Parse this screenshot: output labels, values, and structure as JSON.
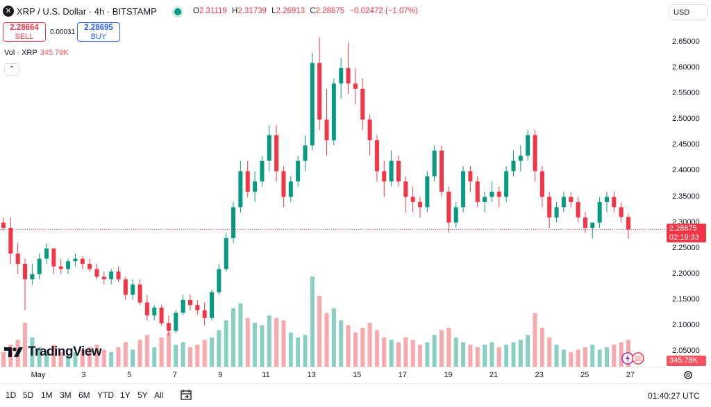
{
  "header": {
    "symbol_icon": "x-logo-icon",
    "title": "XRP / U.S. Dollar · 4h · BITSTAMP",
    "ohlc": {
      "o_label": "O",
      "o": "2.31119",
      "h_label": "H",
      "h": "2.31739",
      "l_label": "L",
      "l": "2.26913",
      "c_label": "C",
      "c": "2.28675",
      "change": "−0.02472 (−1.07%)"
    },
    "currency": "USD"
  },
  "trade": {
    "sell_price": "2.28664",
    "sell_label": "SELL",
    "spread": "0.00031",
    "buy_price": "2.28695",
    "buy_label": "BUY"
  },
  "volume_legend": {
    "label": "Vol · XRP",
    "value": "345.78K"
  },
  "price_axis": {
    "labels": [
      "2.65000",
      "2.60000",
      "2.55000",
      "2.50000",
      "2.45000",
      "2.40000",
      "2.35000",
      "2.30000",
      "2.25000",
      "2.20000",
      "2.15000",
      "2.10000",
      "2.05000"
    ],
    "last_price": "2.28675",
    "countdown": "02:19:33",
    "volume_tag": "345.78K"
  },
  "time_axis": {
    "labels": [
      "May",
      "3",
      "5",
      "7",
      "9",
      "11",
      "13",
      "15",
      "17",
      "19",
      "21",
      "23",
      "25",
      "27"
    ]
  },
  "bottom_bar": {
    "ranges": [
      "1D",
      "5D",
      "1M",
      "3M",
      "6M",
      "YTD",
      "1Y",
      "5Y",
      "All"
    ],
    "clock": "01:40:27 UTC"
  },
  "branding": {
    "logo_text": "TradingView"
  },
  "colors": {
    "up": "#089981",
    "down": "#f23645",
    "vol_up": "#89cfc3",
    "vol_down": "#f7a9ae"
  },
  "chart_data": {
    "type": "candlestick",
    "x_unit": "4h candles, Apr 30 – May 27",
    "ylim": [
      2.02,
      2.68
    ],
    "candles": [
      [
        2.3,
        2.31,
        2.285,
        2.29
      ],
      [
        2.29,
        2.31,
        2.22,
        2.24
      ],
      [
        2.24,
        2.26,
        2.2,
        2.22
      ],
      [
        2.22,
        2.23,
        2.13,
        2.19
      ],
      [
        2.19,
        2.22,
        2.18,
        2.2
      ],
      [
        2.2,
        2.24,
        2.19,
        2.23
      ],
      [
        2.23,
        2.26,
        2.22,
        2.25
      ],
      [
        2.25,
        2.25,
        2.2,
        2.215
      ],
      [
        2.215,
        2.23,
        2.2,
        2.21
      ],
      [
        2.21,
        2.23,
        2.2,
        2.225
      ],
      [
        2.225,
        2.24,
        2.215,
        2.23
      ],
      [
        2.23,
        2.235,
        2.21,
        2.22
      ],
      [
        2.22,
        2.23,
        2.205,
        2.21
      ],
      [
        2.21,
        2.22,
        2.19,
        2.195
      ],
      [
        2.195,
        2.205,
        2.18,
        2.19
      ],
      [
        2.19,
        2.21,
        2.18,
        2.205
      ],
      [
        2.205,
        2.215,
        2.185,
        2.19
      ],
      [
        2.19,
        2.195,
        2.15,
        2.16
      ],
      [
        2.16,
        2.19,
        2.15,
        2.18
      ],
      [
        2.18,
        2.19,
        2.14,
        2.145
      ],
      [
        2.145,
        2.16,
        2.11,
        2.12
      ],
      [
        2.12,
        2.14,
        2.11,
        2.135
      ],
      [
        2.135,
        2.14,
        2.1,
        2.105
      ],
      [
        2.105,
        2.12,
        2.08,
        2.09
      ],
      [
        2.09,
        2.13,
        2.085,
        2.125
      ],
      [
        2.125,
        2.16,
        2.12,
        2.15
      ],
      [
        2.15,
        2.16,
        2.13,
        2.14
      ],
      [
        2.14,
        2.15,
        2.12,
        2.13
      ],
      [
        2.13,
        2.145,
        2.1,
        2.115
      ],
      [
        2.115,
        2.17,
        2.11,
        2.165
      ],
      [
        2.165,
        2.22,
        2.16,
        2.21
      ],
      [
        2.21,
        2.28,
        2.205,
        2.27
      ],
      [
        2.27,
        2.34,
        2.26,
        2.33
      ],
      [
        2.33,
        2.42,
        2.32,
        2.4
      ],
      [
        2.4,
        2.42,
        2.35,
        2.36
      ],
      [
        2.36,
        2.4,
        2.34,
        2.38
      ],
      [
        2.38,
        2.43,
        2.37,
        2.42
      ],
      [
        2.42,
        2.49,
        2.4,
        2.47
      ],
      [
        2.47,
        2.49,
        2.38,
        2.4
      ],
      [
        2.4,
        2.41,
        2.33,
        2.35
      ],
      [
        2.35,
        2.39,
        2.34,
        2.38
      ],
      [
        2.38,
        2.43,
        2.37,
        2.42
      ],
      [
        2.42,
        2.47,
        2.4,
        2.45
      ],
      [
        2.45,
        2.63,
        2.44,
        2.61
      ],
      [
        2.61,
        2.66,
        2.48,
        2.5
      ],
      [
        2.5,
        2.56,
        2.43,
        2.46
      ],
      [
        2.46,
        2.58,
        2.45,
        2.57
      ],
      [
        2.57,
        2.62,
        2.54,
        2.6
      ],
      [
        2.6,
        2.65,
        2.55,
        2.57
      ],
      [
        2.57,
        2.6,
        2.53,
        2.56
      ],
      [
        2.56,
        2.58,
        2.48,
        2.5
      ],
      [
        2.5,
        2.51,
        2.43,
        2.46
      ],
      [
        2.46,
        2.47,
        2.38,
        2.4
      ],
      [
        2.4,
        2.42,
        2.35,
        2.38
      ],
      [
        2.38,
        2.44,
        2.37,
        2.42
      ],
      [
        2.42,
        2.43,
        2.37,
        2.38
      ],
      [
        2.38,
        2.39,
        2.32,
        2.35
      ],
      [
        2.35,
        2.37,
        2.32,
        2.34
      ],
      [
        2.34,
        2.35,
        2.31,
        2.33
      ],
      [
        2.33,
        2.4,
        2.32,
        2.39
      ],
      [
        2.39,
        2.45,
        2.38,
        2.44
      ],
      [
        2.44,
        2.45,
        2.35,
        2.36
      ],
      [
        2.36,
        2.37,
        2.28,
        2.3
      ],
      [
        2.3,
        2.34,
        2.29,
        2.33
      ],
      [
        2.33,
        2.41,
        2.32,
        2.4
      ],
      [
        2.4,
        2.41,
        2.36,
        2.38
      ],
      [
        2.38,
        2.39,
        2.33,
        2.34
      ],
      [
        2.34,
        2.36,
        2.32,
        2.35
      ],
      [
        2.35,
        2.38,
        2.34,
        2.36
      ],
      [
        2.36,
        2.37,
        2.33,
        2.35
      ],
      [
        2.35,
        2.41,
        2.34,
        2.4
      ],
      [
        2.4,
        2.44,
        2.39,
        2.42
      ],
      [
        2.42,
        2.45,
        2.4,
        2.43
      ],
      [
        2.43,
        2.48,
        2.42,
        2.47
      ],
      [
        2.47,
        2.48,
        2.38,
        2.4
      ],
      [
        2.4,
        2.41,
        2.33,
        2.35
      ],
      [
        2.35,
        2.36,
        2.29,
        2.31
      ],
      [
        2.31,
        2.34,
        2.3,
        2.33
      ],
      [
        2.33,
        2.36,
        2.32,
        2.35
      ],
      [
        2.35,
        2.36,
        2.33,
        2.34
      ],
      [
        2.34,
        2.35,
        2.3,
        2.31
      ],
      [
        2.31,
        2.32,
        2.28,
        2.29
      ],
      [
        2.29,
        2.3,
        2.27,
        2.3
      ],
      [
        2.3,
        2.35,
        2.29,
        2.34
      ],
      [
        2.34,
        2.36,
        2.32,
        2.35
      ],
      [
        2.35,
        2.36,
        2.32,
        2.33
      ],
      [
        2.33,
        2.34,
        2.3,
        2.311
      ],
      [
        2.311,
        2.317,
        2.269,
        2.287
      ]
    ],
    "volume": [
      0.6,
      0.9,
      1.1,
      1.8,
      1.2,
      0.8,
      0.7,
      0.9,
      0.6,
      0.5,
      0.6,
      0.7,
      0.8,
      0.9,
      0.7,
      0.6,
      0.8,
      1.0,
      0.7,
      1.1,
      1.3,
      0.8,
      1.2,
      1.4,
      0.9,
      1.0,
      0.8,
      0.9,
      1.1,
      1.2,
      1.5,
      1.9,
      2.4,
      2.6,
      2.0,
      1.8,
      1.7,
      2.1,
      2.0,
      1.9,
      1.4,
      1.2,
      1.3,
      3.7,
      2.9,
      2.2,
      2.4,
      1.9,
      1.7,
      1.4,
      1.6,
      1.8,
      1.5,
      1.2,
      1.1,
      1.0,
      1.2,
      1.1,
      0.9,
      1.0,
      1.3,
      1.5,
      1.6,
      1.2,
      1.0,
      0.9,
      0.8,
      0.9,
      1.0,
      0.8,
      0.9,
      1.0,
      1.1,
      1.3,
      2.2,
      1.6,
      1.2,
      0.9,
      0.7,
      0.6,
      0.7,
      0.8,
      0.9,
      0.7,
      0.8,
      0.9,
      1.0,
      1.1
    ],
    "last_price": 2.28675
  }
}
